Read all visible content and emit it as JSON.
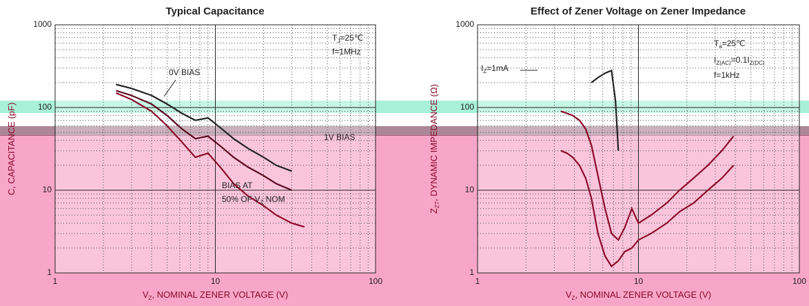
{
  "chart_data": [
    {
      "type": "line",
      "title": "Typical Capacitance",
      "x_label": [
        {
          "text": "V"
        },
        {
          "text": "Z",
          "sub": true
        },
        {
          "text": ", NOMINAL ZENER VOLTAGE (V)"
        }
      ],
      "y_label": [
        {
          "text": "C, CAPACITANCE (pF)"
        }
      ],
      "log_x": true,
      "log_y": true,
      "grid": true,
      "xlim": [
        1,
        100
      ],
      "ylim": [
        1,
        1000
      ],
      "xticks": [
        1,
        10,
        100
      ],
      "yticks": [
        1,
        10,
        100,
        1000
      ],
      "xminor": [
        2,
        3,
        4,
        5,
        6,
        7,
        8,
        9,
        20,
        30,
        40,
        50,
        60,
        70,
        80,
        90
      ],
      "yminor": [
        2,
        3,
        4,
        5,
        6,
        7,
        8,
        9,
        20,
        30,
        40,
        50,
        60,
        70,
        80,
        90,
        200,
        300,
        400,
        500,
        600,
        700,
        800,
        900
      ],
      "annotations": [
        [
          {
            "text": "T"
          },
          {
            "text": "J",
            "sub": true
          },
          {
            "text": "=25℃"
          }
        ],
        [
          {
            "text": "f=1MHz"
          }
        ],
        [
          {
            "text": "0V BIAS"
          }
        ],
        [
          {
            "text": "1V BIAS"
          }
        ],
        [
          {
            "text": "BIAS AT"
          }
        ],
        [
          {
            "text": "50% OF V"
          },
          {
            "text": "Z",
            "sub": true
          },
          {
            "text": " NOM"
          }
        ]
      ],
      "series": [
        {
          "color": "#222222",
          "x": [
            2.4,
            3,
            4,
            5,
            6.2,
            7.5,
            9,
            11,
            13,
            16,
            20,
            24,
            30
          ],
          "values": [
            190,
            170,
            140,
            110,
            85,
            70,
            75,
            55,
            42,
            32,
            25,
            20,
            17
          ]
        },
        {
          "color": "#5a0a1e",
          "x": [
            2.4,
            3,
            4,
            5,
            6.2,
            7.5,
            9,
            11,
            13,
            16,
            20,
            24,
            30
          ],
          "values": [
            160,
            140,
            110,
            80,
            55,
            42,
            45,
            33,
            25,
            19,
            15,
            12,
            10
          ]
        },
        {
          "color": "#8b0a2a",
          "x": [
            2.4,
            3,
            4,
            5,
            6.2,
            7.5,
            9,
            11,
            13,
            16,
            20,
            24,
            30,
            36
          ],
          "values": [
            150,
            125,
            90,
            60,
            38,
            25,
            28,
            18,
            12,
            8.5,
            6.5,
            5,
            4,
            3.6
          ]
        }
      ]
    },
    {
      "type": "line",
      "title": "Effect of Zener Voltage on Zener Impedance",
      "x_label": [
        {
          "text": "V"
        },
        {
          "text": "Z",
          "sub": true
        },
        {
          "text": ", NOMINAL ZENER VOLTAGE (V)"
        }
      ],
      "y_label": [
        {
          "text": "Z"
        },
        {
          "text": "ZT",
          "sub": true
        },
        {
          "text": ", DYNAMIC IMPEDANCE (Ω)"
        }
      ],
      "log_x": true,
      "log_y": true,
      "grid": true,
      "xlim": [
        1,
        100
      ],
      "ylim": [
        1,
        1000
      ],
      "xticks": [
        1,
        10,
        100
      ],
      "yticks": [
        1,
        10,
        100,
        1000
      ],
      "xminor": [
        2,
        3,
        4,
        5,
        6,
        7,
        8,
        9,
        20,
        30,
        40,
        50,
        60,
        70,
        80,
        90
      ],
      "yminor": [
        2,
        3,
        4,
        5,
        6,
        7,
        8,
        9,
        20,
        30,
        40,
        50,
        60,
        70,
        80,
        90,
        200,
        300,
        400,
        500,
        600,
        700,
        800,
        900
      ],
      "annotations": [
        [
          {
            "text": "T"
          },
          {
            "text": "a",
            "sub": true
          },
          {
            "text": "=25℃"
          }
        ],
        [
          {
            "text": "I"
          },
          {
            "text": "Z(AC)",
            "sub": true
          },
          {
            "text": "=0.1I"
          },
          {
            "text": "Z(DC)",
            "sub": true
          }
        ],
        [
          {
            "text": "f=1kHz"
          }
        ],
        [
          {
            "text": "I"
          },
          {
            "text": "Z",
            "sub": true
          },
          {
            "text": "=1mA"
          }
        ]
      ],
      "series": [
        {
          "color": "#222222",
          "x": [
            5.1,
            5.6,
            6.2,
            6.8,
            7.2,
            7.5
          ],
          "values": [
            200,
            230,
            260,
            280,
            120,
            30
          ]
        },
        {
          "color": "#8b0a2a",
          "x": [
            3.3,
            3.6,
            3.9,
            4.3,
            4.7,
            5.1,
            5.6,
            6.2,
            6.8,
            7.5,
            8.2,
            9.1,
            10,
            12,
            15,
            18,
            22,
            27,
            33,
            39
          ],
          "values": [
            90,
            85,
            80,
            70,
            55,
            35,
            15,
            6,
            3,
            2.5,
            3.5,
            6,
            4,
            5,
            7,
            10,
            14,
            20,
            30,
            45
          ]
        },
        {
          "color": "#8b0a2a",
          "x": [
            3.3,
            3.6,
            3.9,
            4.3,
            4.7,
            5.1,
            5.6,
            6.2,
            6.8,
            7.5,
            8.2,
            9.1,
            10,
            12,
            15,
            18,
            22,
            27,
            33,
            39
          ],
          "values": [
            30,
            28,
            25,
            20,
            14,
            8,
            3,
            1.6,
            1.2,
            1.4,
            1.8,
            2,
            2.5,
            3,
            4,
            5.5,
            7,
            10,
            14,
            20
          ]
        }
      ]
    }
  ]
}
